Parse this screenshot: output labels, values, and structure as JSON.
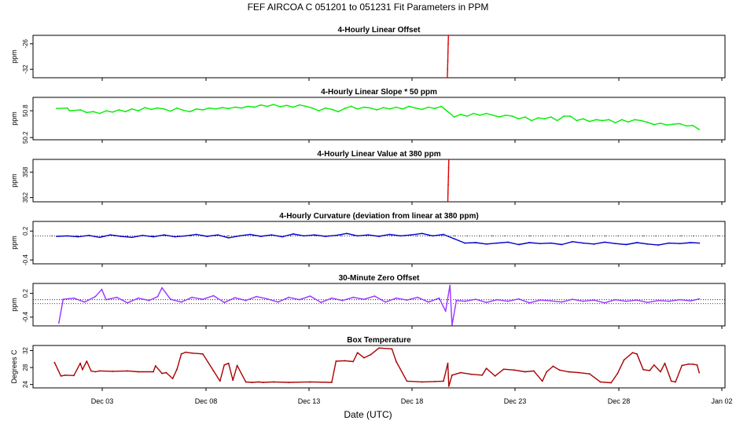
{
  "page_title": "FEF   AIRCOA C   051201 to 051231   Fit Parameters in PPM",
  "xlabel": "Date (UTC)",
  "x_tick_labels": [
    "Dec 03",
    "Dec 08",
    "Dec 13",
    "Dec 18",
    "Dec 23",
    "Dec 28",
    "Jan 02"
  ],
  "chart_data": [
    {
      "type": "line",
      "title": "4-Hourly Linear Offset",
      "ylabel": "ppm",
      "yticks": [
        "-26",
        "-32"
      ],
      "ylim": [
        -34,
        -24
      ],
      "x_axis": "days since Dec 01 (Dec 03 = 2)",
      "xlim": [
        0.1,
        32.3
      ],
      "series": [
        {
          "name": "",
          "color": "#dd0000",
          "x": [
            19.38,
            19.39,
            19.4,
            19.41,
            19.42,
            19.43
          ],
          "y": [
            -34.0,
            -32.0,
            -30.0,
            -28.0,
            -26.0,
            -24.0
          ]
        }
      ]
    },
    {
      "type": "line",
      "title": "4-Hourly Linear Slope * 50 ppm",
      "ylabel": "ppm",
      "yticks": [
        "50.8",
        "50.2"
      ],
      "ylim": [
        50.15,
        51.1
      ],
      "xlim": [
        0.1,
        32.3
      ],
      "series": [
        {
          "name": "",
          "color": "#00ee00",
          "x": [
            1.2,
            1.7,
            1.8,
            2.3,
            2.6,
            2.9,
            3.2,
            3.5,
            3.8,
            4.1,
            4.4,
            4.7,
            5.0,
            5.3,
            5.6,
            5.9,
            6.2,
            6.5,
            6.8,
            7.1,
            7.4,
            7.7,
            8.0,
            8.3,
            8.6,
            8.9,
            9.2,
            9.5,
            9.8,
            10.1,
            10.4,
            10.7,
            11.0,
            11.3,
            11.6,
            11.9,
            12.2,
            12.5,
            12.8,
            13.1,
            13.4,
            13.7,
            14.0,
            14.3,
            14.6,
            14.9,
            15.2,
            15.5,
            15.8,
            16.1,
            16.4,
            16.7,
            17.0,
            17.3,
            17.6,
            17.9,
            18.2,
            18.5,
            18.8,
            19.1,
            19.4,
            19.7,
            20.0,
            20.3,
            20.6,
            20.9,
            21.2,
            21.5,
            21.8,
            22.1,
            22.4,
            22.7,
            23.0,
            23.3,
            23.6,
            23.9,
            24.2,
            24.5,
            24.8,
            25.1,
            25.4,
            25.7,
            26.0,
            26.3,
            26.6,
            26.9,
            27.2,
            27.5,
            27.8,
            28.1,
            28.4,
            28.7,
            29.0,
            29.3,
            29.6,
            29.9,
            30.2,
            30.5,
            30.8,
            31.1
          ],
          "y": [
            50.85,
            50.86,
            50.8,
            50.82,
            50.76,
            50.78,
            50.74,
            50.8,
            50.77,
            50.82,
            50.78,
            50.84,
            50.8,
            50.87,
            50.83,
            50.86,
            50.84,
            50.79,
            50.86,
            50.81,
            50.78,
            50.84,
            50.82,
            50.86,
            50.84,
            50.87,
            50.85,
            50.88,
            50.86,
            50.9,
            50.88,
            50.93,
            50.9,
            50.94,
            50.89,
            50.92,
            50.88,
            50.93,
            50.9,
            50.86,
            50.8,
            50.86,
            50.83,
            50.78,
            50.85,
            50.9,
            50.84,
            50.88,
            50.86,
            50.82,
            50.87,
            50.84,
            50.88,
            50.84,
            50.9,
            50.86,
            50.83,
            50.88,
            50.85,
            50.9,
            50.78,
            50.66,
            50.72,
            50.68,
            50.74,
            50.7,
            50.74,
            50.7,
            50.66,
            50.7,
            50.68,
            50.62,
            50.66,
            50.58,
            50.64,
            50.62,
            50.66,
            50.58,
            50.68,
            50.68,
            50.58,
            50.62,
            50.56,
            50.6,
            50.58,
            50.6,
            50.53,
            50.6,
            50.55,
            50.6,
            50.58,
            50.54,
            50.49,
            50.52,
            50.48,
            50.5,
            50.51,
            50.46,
            50.47,
            50.38
          ]
        }
      ]
    },
    {
      "type": "line",
      "title": "4-Hourly Linear Value at 380 ppm",
      "ylabel": "ppm",
      "yticks": [
        "358",
        "352"
      ],
      "ylim": [
        351,
        361
      ],
      "xlim": [
        0.1,
        32.3
      ],
      "series": [
        {
          "name": "",
          "color": "#dd0000",
          "x": [
            19.4,
            19.41,
            19.42,
            19.43,
            19.44,
            19.45
          ],
          "y": [
            351.0,
            353.0,
            355.0,
            357.0,
            359.0,
            361.0
          ]
        }
      ]
    },
    {
      "type": "line",
      "title": "4-Hourly Curvature (deviation from linear at 380 ppm)",
      "ylabel": "ppm",
      "yticks": [
        "0.2",
        "-0.4"
      ],
      "ylim": [
        -0.48,
        0.4
      ],
      "xlim": [
        0.1,
        32.3
      ],
      "series": [
        {
          "name": "",
          "color": "#0000cc",
          "x": [
            1.2,
            1.7,
            2.2,
            2.7,
            3.2,
            3.7,
            4.2,
            4.7,
            5.2,
            5.7,
            6.2,
            6.7,
            7.2,
            7.7,
            8.2,
            8.7,
            9.2,
            9.7,
            10.2,
            10.7,
            11.2,
            11.7,
            12.2,
            12.7,
            13.2,
            13.7,
            14.2,
            14.7,
            15.2,
            15.7,
            16.2,
            16.7,
            17.2,
            17.7,
            18.2,
            18.7,
            19.2,
            19.7,
            20.2,
            20.7,
            21.2,
            21.7,
            22.2,
            22.7,
            23.2,
            23.7,
            24.2,
            24.7,
            25.2,
            25.7,
            26.2,
            26.7,
            27.2,
            27.7,
            28.2,
            28.7,
            29.2,
            29.7,
            30.2,
            30.7,
            31.1
          ],
          "y": [
            0.09,
            0.1,
            0.08,
            0.11,
            0.07,
            0.12,
            0.09,
            0.07,
            0.11,
            0.08,
            0.12,
            0.08,
            0.1,
            0.13,
            0.09,
            0.12,
            0.06,
            0.1,
            0.13,
            0.09,
            0.12,
            0.08,
            0.14,
            0.1,
            0.12,
            0.09,
            0.11,
            0.15,
            0.1,
            0.12,
            0.09,
            0.13,
            0.1,
            0.12,
            0.15,
            0.1,
            0.13,
            0.04,
            -0.05,
            -0.04,
            -0.07,
            -0.05,
            -0.03,
            -0.08,
            -0.04,
            -0.06,
            -0.05,
            -0.08,
            -0.02,
            -0.05,
            -0.07,
            -0.03,
            -0.06,
            -0.08,
            -0.04,
            -0.07,
            -0.09,
            -0.05,
            -0.06,
            -0.04,
            -0.05
          ]
        }
      ],
      "reference_line": 0.1
    },
    {
      "type": "line",
      "title": "30-Minute Zero Offset",
      "ylabel": "ppm",
      "yticks": [
        "0.2",
        "-0.4"
      ],
      "ylim": [
        -0.62,
        0.45
      ],
      "xlim": [
        0.1,
        32.3
      ],
      "series": [
        {
          "name": "",
          "color": "#9933ff",
          "x": [
            1.3,
            1.5,
            2.0,
            2.5,
            3.0,
            3.3,
            3.5,
            4.0,
            4.5,
            5.0,
            5.5,
            5.9,
            6.1,
            6.5,
            7.0,
            7.5,
            8.0,
            8.5,
            9.0,
            9.5,
            10.0,
            10.5,
            11.0,
            11.5,
            12.0,
            12.5,
            13.0,
            13.5,
            14.0,
            14.5,
            15.0,
            15.5,
            16.0,
            16.5,
            17.0,
            17.5,
            18.0,
            18.5,
            19.0,
            19.3,
            19.5,
            19.6,
            19.8,
            20.2,
            20.7,
            21.2,
            21.7,
            22.2,
            22.7,
            23.2,
            23.7,
            24.2,
            24.7,
            25.2,
            25.7,
            26.2,
            26.7,
            27.2,
            27.7,
            28.2,
            28.7,
            29.2,
            29.7,
            30.2,
            30.7,
            31.1
          ],
          "y": [
            -0.55,
            0.05,
            0.08,
            -0.02,
            0.12,
            0.3,
            0.04,
            0.1,
            -0.04,
            0.08,
            0.02,
            0.12,
            0.34,
            0.05,
            -0.02,
            0.1,
            0.05,
            0.14,
            -0.03,
            0.09,
            0.02,
            0.12,
            0.06,
            -0.02,
            0.1,
            0.04,
            0.13,
            -0.03,
            0.08,
            0.02,
            0.1,
            0.05,
            0.13,
            -0.02,
            0.08,
            0.03,
            0.1,
            -0.02,
            0.08,
            -0.25,
            0.4,
            -0.6,
            0.02,
            0.0,
            0.05,
            -0.03,
            0.04,
            0.0,
            0.06,
            -0.04,
            0.03,
            0.01,
            -0.02,
            0.05,
            0.0,
            0.03,
            -0.04,
            0.04,
            0.0,
            0.03,
            -0.03,
            0.02,
            0.0,
            0.04,
            0.01,
            0.06
          ]
        }
      ],
      "reference_lines": [
        0.04,
        -0.06
      ]
    },
    {
      "type": "line",
      "title": "Box Temperature",
      "ylabel": "Degrees C",
      "yticks": [
        "32",
        "28",
        "24"
      ],
      "ylim": [
        23.2,
        33.2
      ],
      "xlim": [
        0.1,
        32.3
      ],
      "series": [
        {
          "name": "",
          "color": "#aa0000",
          "x": [
            1.1,
            1.4,
            1.6,
            2.0,
            2.3,
            2.4,
            2.6,
            2.8,
            3.0,
            3.2,
            3.8,
            4.5,
            5.0,
            5.7,
            5.8,
            6.1,
            6.3,
            6.6,
            6.8,
            7.0,
            7.2,
            7.5,
            8.0,
            8.5,
            8.8,
            9.0,
            9.2,
            9.4,
            9.6,
            10.0,
            10.3,
            10.6,
            10.8,
            11.3,
            12.0,
            13.0,
            14.0,
            14.2,
            14.6,
            15.0,
            15.2,
            15.5,
            15.8,
            16.2,
            16.8,
            17.0,
            17.5,
            18.2,
            18.8,
            19.2,
            19.4,
            19.45,
            19.6,
            20.0,
            20.5,
            21.0,
            21.2,
            21.6,
            22.0,
            22.5,
            23.0,
            23.4,
            23.8,
            24.0,
            24.3,
            24.6,
            25.0,
            25.5,
            26.0,
            26.5,
            27.0,
            27.3,
            27.6,
            28.0,
            28.2,
            28.5,
            28.8,
            29.0,
            29.3,
            29.5,
            29.8,
            30.0,
            30.3,
            30.6,
            30.8,
            31.0,
            31.1
          ],
          "y": [
            29.2,
            26.0,
            26.2,
            26.1,
            29.0,
            27.5,
            29.5,
            27.2,
            27.0,
            27.2,
            27.1,
            27.2,
            27.0,
            27.0,
            28.4,
            26.6,
            26.8,
            25.4,
            27.6,
            31.2,
            31.6,
            31.4,
            31.2,
            27.2,
            24.8,
            28.6,
            29.0,
            25.0,
            28.5,
            24.6,
            24.5,
            24.6,
            24.5,
            24.6,
            24.5,
            24.6,
            24.5,
            29.5,
            29.6,
            29.4,
            31.5,
            30.3,
            31.0,
            32.6,
            32.4,
            29.4,
            24.8,
            24.6,
            24.7,
            24.8,
            29.0,
            23.6,
            26.2,
            26.8,
            26.4,
            26.2,
            27.8,
            26.0,
            27.6,
            27.4,
            27.0,
            27.2,
            24.8,
            27.0,
            28.3,
            27.4,
            27.0,
            26.8,
            26.5,
            24.6,
            24.4,
            26.6,
            29.8,
            31.5,
            31.2,
            27.5,
            27.3,
            28.6,
            27.0,
            29.0,
            24.8,
            24.6,
            28.5,
            28.8,
            28.8,
            28.6,
            26.8
          ]
        }
      ]
    }
  ]
}
